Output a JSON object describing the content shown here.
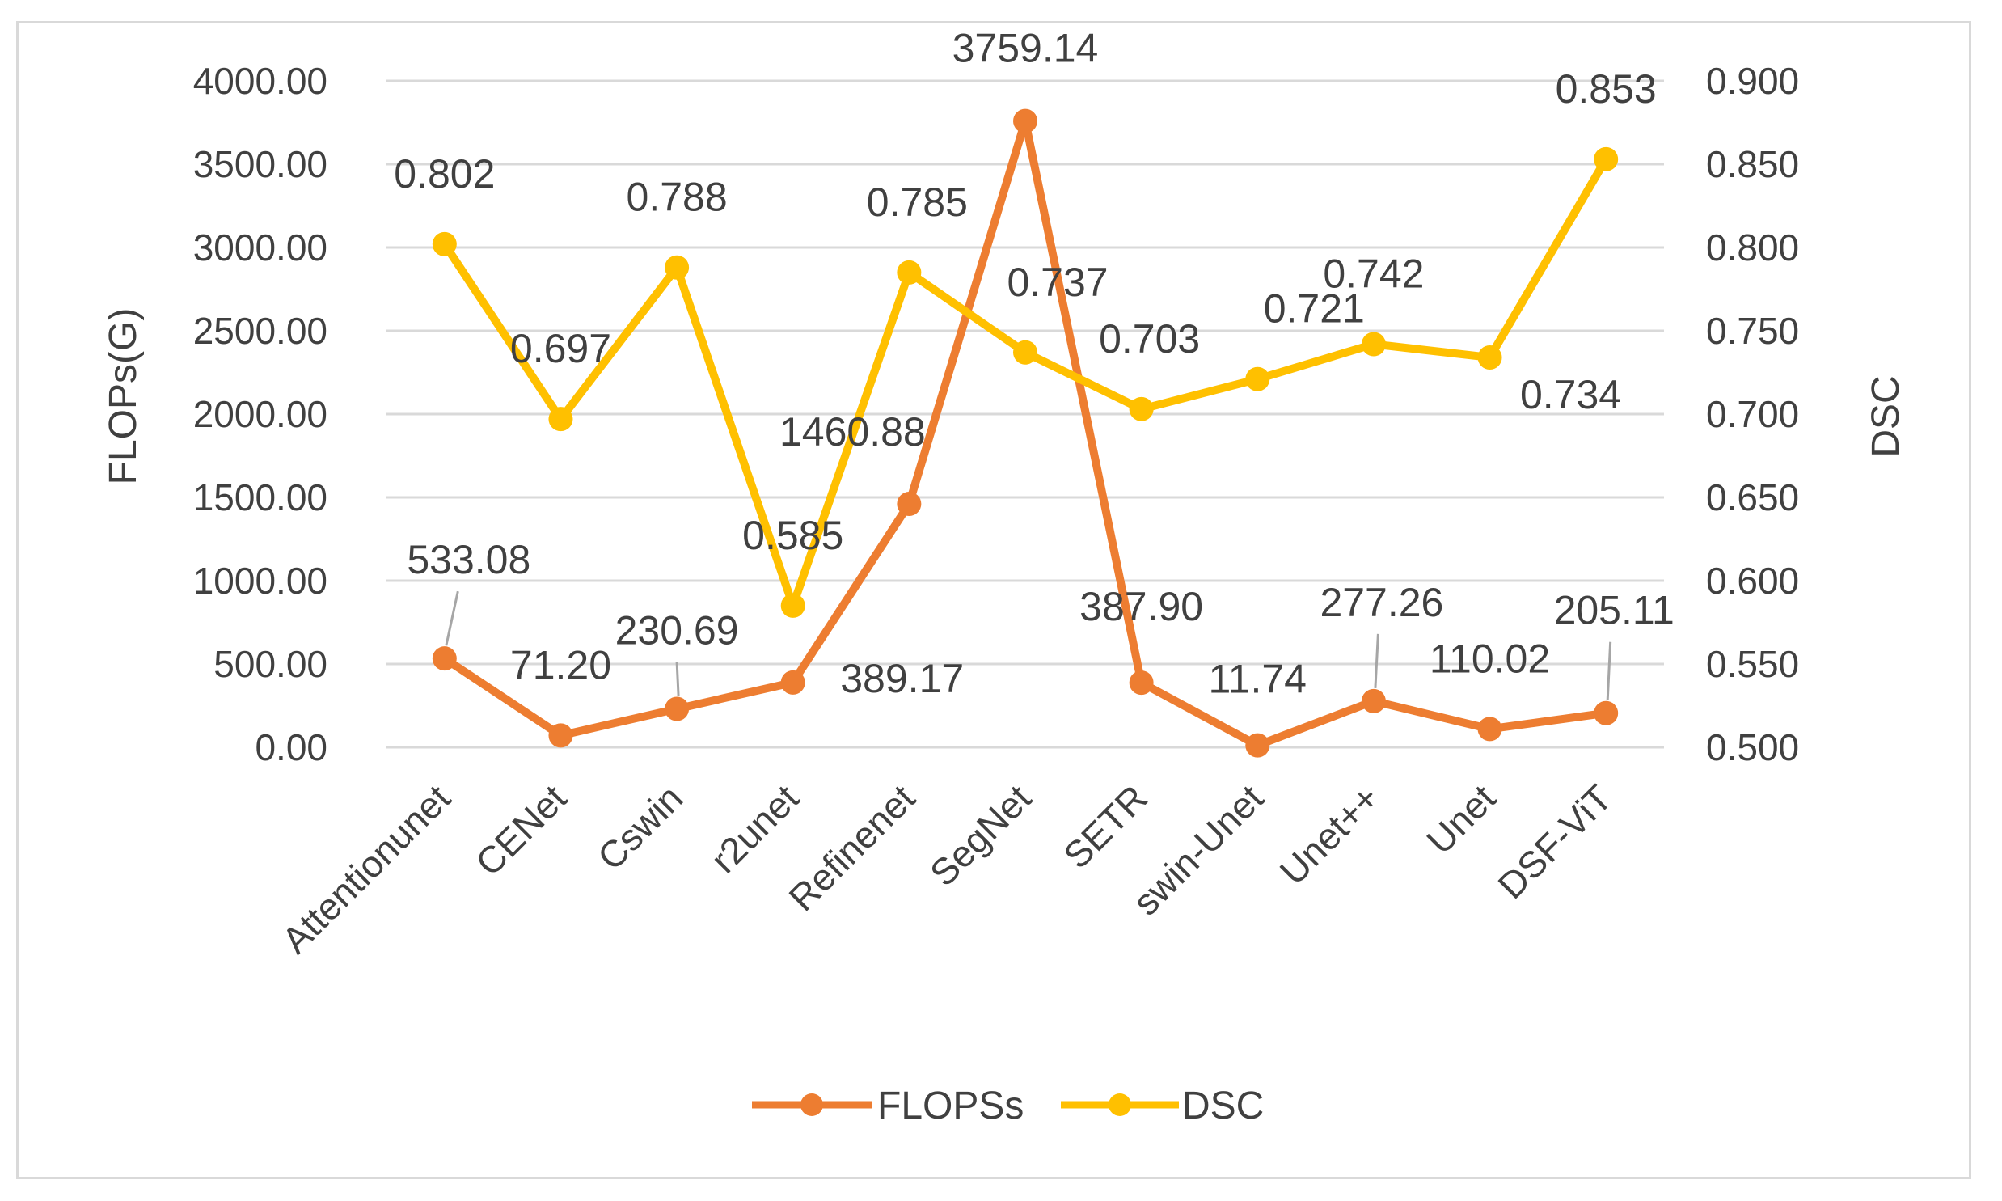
{
  "chart_data": {
    "type": "line",
    "categories": [
      "Attentionunet",
      "CENet",
      "Cswin",
      "r2unet",
      "Refinenet",
      "SegNet",
      "SETR",
      "swin-Unet",
      "Unet++",
      "Unet",
      "DSF-ViT"
    ],
    "series": [
      {
        "name": "FLOPSs",
        "axis": "left",
        "color": "#ED7D31",
        "values": [
          533.08,
          71.2,
          230.69,
          389.17,
          1460.88,
          3759.14,
          387.9,
          11.74,
          277.26,
          110.02,
          205.11
        ],
        "labels": [
          "533.08",
          "71.20",
          "230.69",
          "389.17",
          "1460.88",
          "3759.14",
          "387.90",
          "11.74",
          "277.26",
          "110.02",
          "205.11"
        ]
      },
      {
        "name": "DSC",
        "axis": "right",
        "color": "#FFC000",
        "values": [
          0.802,
          0.697,
          0.788,
          0.585,
          0.785,
          0.737,
          0.703,
          0.721,
          0.742,
          0.734,
          0.853
        ],
        "labels": [
          "0.802",
          "0.697",
          "0.788",
          "0.585",
          "0.785",
          "0.737",
          "0.703",
          "0.721",
          "0.742",
          "0.734",
          "0.853"
        ]
      }
    ],
    "y_left": {
      "label": "FLOPs(G)",
      "range": [
        0,
        4000
      ],
      "ticks": [
        "0.00",
        "500.00",
        "1000.00",
        "1500.00",
        "2000.00",
        "2500.00",
        "3000.00",
        "3500.00",
        "4000.00"
      ]
    },
    "y_right": {
      "label": "DSC",
      "range": [
        0.5,
        0.9
      ],
      "ticks": [
        "0.500",
        "0.550",
        "0.600",
        "0.650",
        "0.700",
        "0.750",
        "0.800",
        "0.850",
        "0.900"
      ]
    },
    "grid": true,
    "legend": {
      "position": "bottom",
      "entries": [
        "FLOPSs",
        "DSC"
      ]
    },
    "grid_color": "#d9d9d9",
    "text_color": "#404040"
  }
}
